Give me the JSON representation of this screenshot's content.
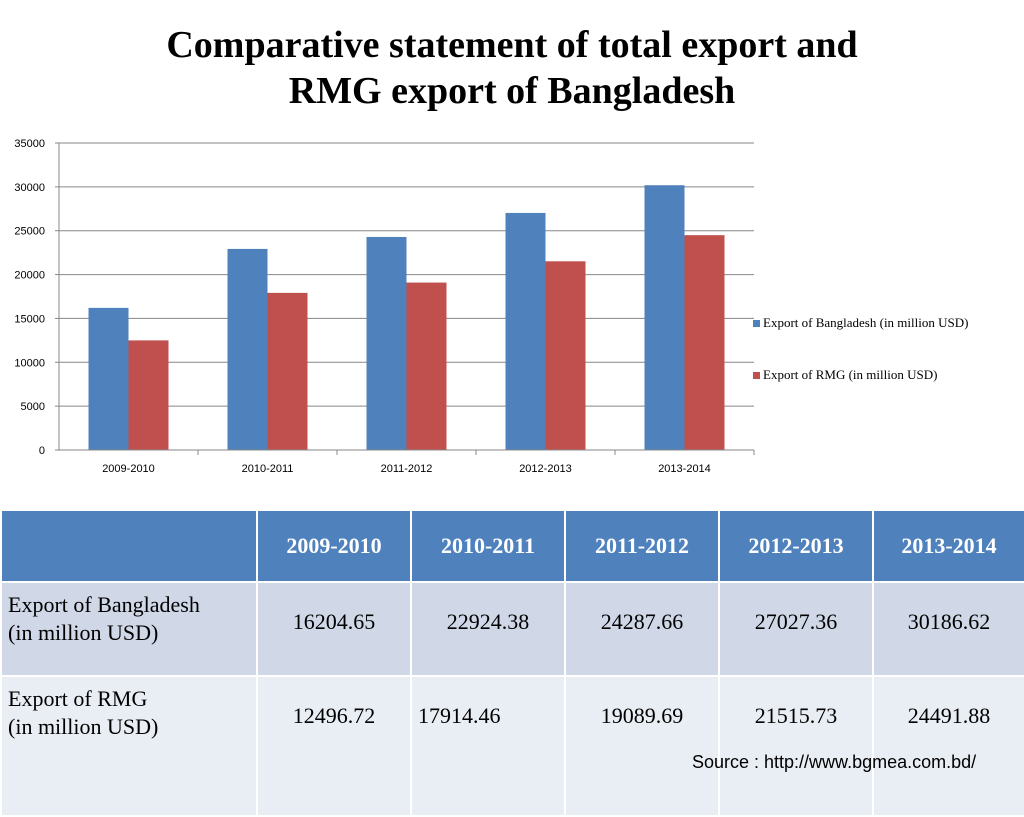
{
  "header": {
    "title_line1": "Comparative statement of total export and",
    "title_line2": "RMG export of Bangladesh"
  },
  "chart_data": {
    "type": "bar",
    "categories": [
      "2009-2010",
      "2010-2011",
      "2011-2012",
      "2012-2013",
      "2013-2014"
    ],
    "series": [
      {
        "name": "Export of Bangladesh (in million USD)",
        "color": "#4f81bd",
        "values": [
          16204.65,
          22924.38,
          24287.66,
          27027.36,
          30186.62
        ]
      },
      {
        "name": "Export of RMG (in million USD)",
        "color": "#c0504d",
        "values": [
          12496.72,
          17914.46,
          19089.69,
          21515.73,
          24491.88
        ]
      }
    ],
    "ylim": [
      0,
      35000
    ],
    "yticks": [
      0,
      5000,
      10000,
      15000,
      20000,
      25000,
      30000,
      35000
    ],
    "grid": true,
    "legend_position": "right"
  },
  "table": {
    "headers": [
      "",
      "2009-2010",
      "2010-2011",
      "2011-2012",
      "2012-2013",
      "2013-2014"
    ],
    "rows": [
      {
        "label_line1": "Export of Bangladesh",
        "label_line2": "(in million USD)",
        "values": [
          "16204.65",
          "22924.38",
          "24287.66",
          "27027.36",
          "30186.62"
        ]
      },
      {
        "label_line1": "Export of RMG",
        "label_line2": "(in million USD)",
        "values": [
          "12496.72",
          "17914.46",
          "19089.69",
          "21515.73",
          "24491.88"
        ]
      }
    ]
  },
  "footer": {
    "source": "Source : http://www.bgmea.com.bd/"
  },
  "colors": {
    "header_fill": "#4f81bd",
    "row1_fill": "#d0d8e8",
    "row2_fill": "#e9edf4"
  }
}
